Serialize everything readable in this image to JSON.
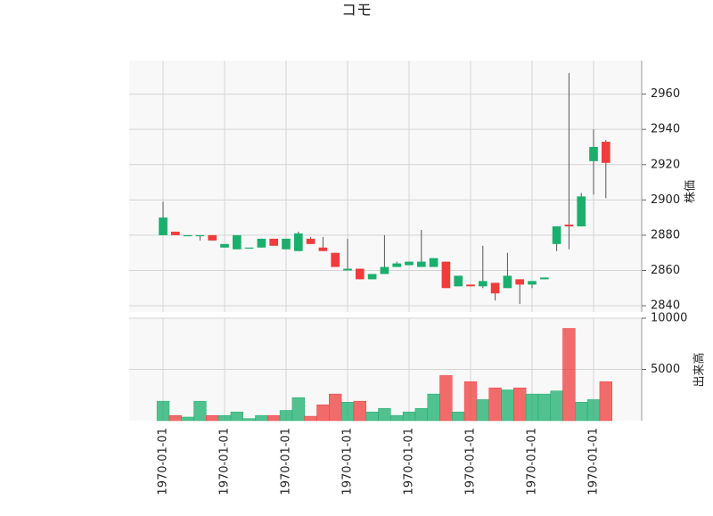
{
  "chart_data": {
    "type": "candlestick",
    "title": "コモ",
    "categories": [
      "1970-01-01",
      null,
      null,
      null,
      null,
      "1970-01-01",
      null,
      null,
      null,
      null,
      "1970-01-01",
      null,
      null,
      null,
      null,
      "1970-01-01",
      null,
      null,
      null,
      null,
      "1970-01-01",
      null,
      null,
      null,
      null,
      "1970-01-01",
      null,
      null,
      null,
      null,
      "1970-01-01",
      null,
      null,
      null,
      null,
      "1970-01-01",
      null
    ],
    "open": [
      2880,
      2882,
      2880,
      2880,
      2880,
      2873,
      2872,
      2873,
      2873,
      2878,
      2872,
      2871,
      2878,
      2873,
      2870,
      2860,
      2861,
      2855,
      2858,
      2862,
      2863,
      2862,
      2862,
      2865,
      2851,
      2852,
      2851,
      2853,
      2850,
      2855,
      2852,
      2855,
      2875,
      2886,
      2885,
      2922,
      2933
    ],
    "high": [
      2899,
      2882,
      2880,
      2880,
      2880,
      2875,
      2880,
      2873,
      2878,
      2878,
      2878,
      2882,
      2879,
      2879,
      2870,
      2878,
      2861,
      2858,
      2880,
      2865,
      2865,
      2883,
      2867,
      2865,
      2857,
      2852,
      2874,
      2853,
      2870,
      2855,
      2854,
      2856,
      2885,
      2972,
      2904,
      2940,
      2934
    ],
    "low": [
      2880,
      2880,
      2880,
      2877,
      2877,
      2873,
      2872,
      2873,
      2873,
      2874,
      2872,
      2871,
      2875,
      2871,
      2862,
      2860,
      2855,
      2855,
      2858,
      2862,
      2863,
      2862,
      2862,
      2850,
      2851,
      2851,
      2850,
      2843,
      2850,
      2841,
      2850,
      2855,
      2871,
      2872,
      2885,
      2903,
      2901
    ],
    "close": [
      2890,
      2880,
      2880,
      2880,
      2877,
      2875,
      2880,
      2873,
      2878,
      2874,
      2878,
      2881,
      2875,
      2871,
      2862,
      2861,
      2855,
      2858,
      2862,
      2864,
      2865,
      2865,
      2867,
      2850,
      2857,
      2851,
      2854,
      2847,
      2857,
      2852,
      2854,
      2856,
      2885,
      2885,
      2902,
      2930,
      2921
    ],
    "volume": [
      1900,
      500,
      350,
      1900,
      500,
      500,
      850,
      200,
      500,
      500,
      1000,
      2250,
      430,
      1550,
      2600,
      1800,
      1900,
      850,
      1200,
      500,
      850,
      1200,
      2600,
      4400,
      850,
      3800,
      2050,
      3200,
      3000,
      3200,
      2600,
      2600,
      2900,
      9000,
      1800,
      2050,
      3800
    ],
    "up_color": "#1aaf6c",
    "down_color": "#f03c3c",
    "ylabel": "株価",
    "ylim": [
      2836.5,
      2979
    ],
    "yticks": [
      2840,
      2860,
      2880,
      2900,
      2920,
      2940,
      2960
    ],
    "y2label": "出来高",
    "y2lim": [
      0,
      10000
    ],
    "y2ticks": [
      5000,
      10000
    ],
    "grid": true
  }
}
